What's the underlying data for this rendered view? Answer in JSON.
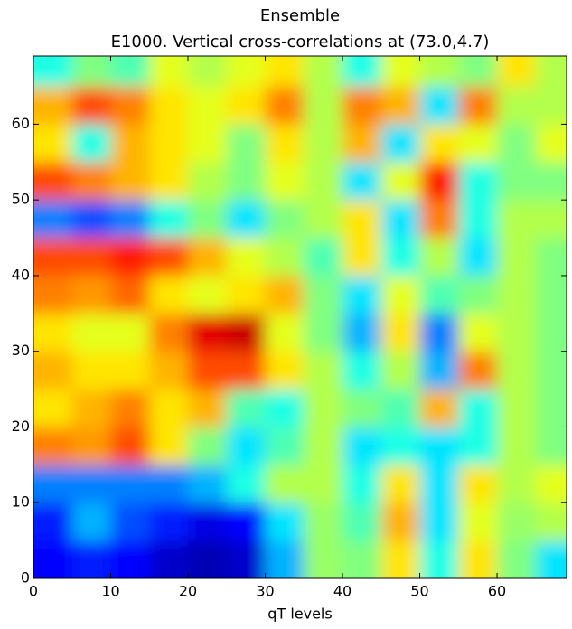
{
  "chart_data": {
    "type": "contour",
    "title": "Ensemble",
    "subtitle": "E1000.  Vertical cross-correlations at (73.0,4.7)",
    "x_label": "qT levels",
    "colormap": "jet",
    "clim": [
      -1,
      1
    ],
    "x": [
      2.5,
      7.5,
      12.5,
      17.5,
      22.5,
      27.5,
      32.5,
      37.5,
      42.5,
      47.5,
      52.5,
      57.5,
      62.5,
      67.5
    ],
    "y": [
      2.5,
      7.5,
      12.5,
      17.5,
      22.5,
      27.5,
      32.5,
      37.5,
      42.5,
      47.5,
      52.5,
      57.5,
      62.5,
      67.5
    ],
    "z": [
      [
        -0.75,
        -0.7,
        -0.75,
        -0.85,
        -0.9,
        -0.85,
        -0.4,
        0.05,
        0.0,
        0.3,
        -0.2,
        0.3,
        0.0,
        -0.3
      ],
      [
        -0.7,
        -0.4,
        -0.6,
        -0.7,
        -0.8,
        -0.75,
        -0.3,
        0.05,
        -0.1,
        0.4,
        -0.3,
        0.2,
        0.05,
        0.1
      ],
      [
        -0.5,
        -0.5,
        -0.5,
        -0.5,
        -0.4,
        -0.2,
        0.1,
        0.1,
        -0.2,
        0.3,
        -0.3,
        0.3,
        0.1,
        0.2
      ],
      [
        0.5,
        0.45,
        0.6,
        0.3,
        0.0,
        -0.3,
        -0.1,
        0.1,
        -0.3,
        -0.2,
        -0.3,
        -0.2,
        0.1,
        0.0
      ],
      [
        0.3,
        0.4,
        0.5,
        0.3,
        0.4,
        -0.1,
        -0.2,
        0.1,
        0.0,
        -0.1,
        0.4,
        -0.2,
        0.1,
        0.0
      ],
      [
        0.4,
        0.3,
        0.3,
        0.4,
        0.6,
        0.6,
        0.3,
        0.1,
        -0.2,
        0.1,
        -0.4,
        0.5,
        0.1,
        0.0
      ],
      [
        0.3,
        0.2,
        0.2,
        0.5,
        0.8,
        0.85,
        0.2,
        0.0,
        -0.4,
        0.3,
        -0.5,
        0.2,
        0.1,
        0.0
      ],
      [
        0.5,
        0.45,
        0.55,
        0.3,
        0.2,
        0.3,
        0.4,
        0.0,
        -0.3,
        0.2,
        -0.1,
        0.0,
        0.1,
        0.0
      ],
      [
        0.6,
        0.6,
        0.7,
        0.6,
        0.4,
        0.2,
        0.1,
        -0.1,
        0.3,
        -0.2,
        0.1,
        -0.3,
        0.1,
        0.0
      ],
      [
        -0.5,
        -0.6,
        -0.5,
        -0.2,
        0.0,
        -0.3,
        0.0,
        0.1,
        0.3,
        -0.3,
        0.5,
        -0.2,
        0.1,
        0.1
      ],
      [
        0.6,
        0.5,
        0.4,
        0.3,
        0.1,
        0.0,
        0.2,
        0.1,
        -0.3,
        0.2,
        0.7,
        -0.2,
        0.0,
        0.0
      ],
      [
        0.3,
        -0.2,
        0.4,
        0.3,
        0.2,
        0.0,
        0.3,
        0.1,
        0.4,
        -0.3,
        0.3,
        0.2,
        0.0,
        0.2
      ],
      [
        0.4,
        0.6,
        0.5,
        0.3,
        0.2,
        0.3,
        0.5,
        0.1,
        0.5,
        0.4,
        -0.3,
        0.5,
        0.1,
        0.1
      ],
      [
        -0.2,
        0.0,
        -0.1,
        0.2,
        0.1,
        0.2,
        0.3,
        0.1,
        -0.2,
        0.2,
        0.1,
        0.0,
        0.3,
        0.1
      ]
    ],
    "xlim": [
      0,
      69
    ],
    "ylim": [
      0,
      69
    ],
    "xticks": [
      0,
      10,
      20,
      30,
      40,
      50,
      60
    ],
    "yticks": [
      0,
      10,
      20,
      30,
      40,
      50,
      60
    ]
  }
}
